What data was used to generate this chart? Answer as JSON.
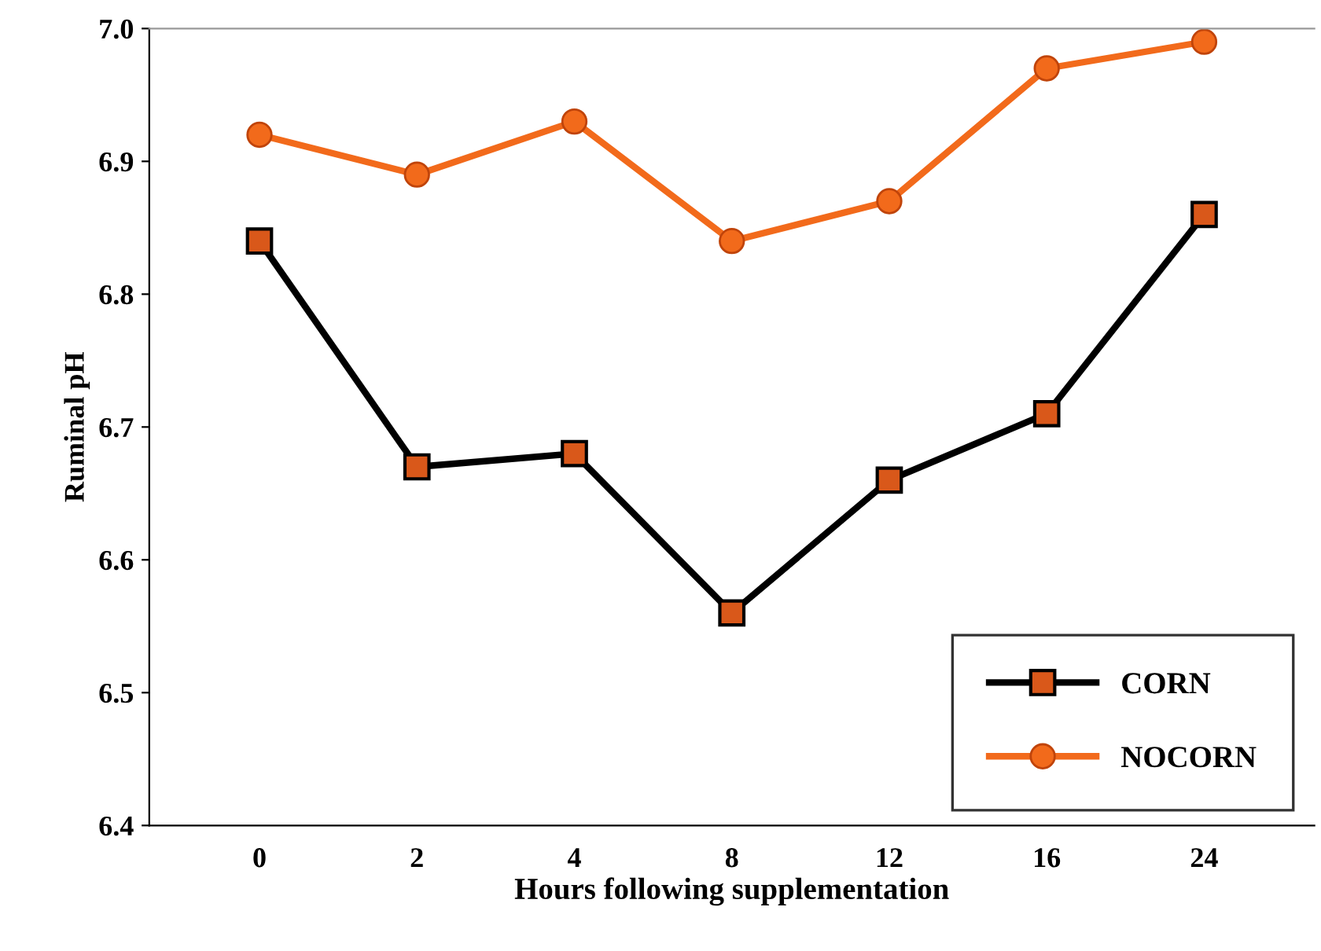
{
  "chart_data": {
    "type": "line",
    "xlabel": "Hours following supplementation",
    "ylabel": "Ruminal pH",
    "categories": [
      "0",
      "2",
      "4",
      "8",
      "12",
      "16",
      "24"
    ],
    "series": [
      {
        "name": "CORN",
        "color": "#000000",
        "marker": "square",
        "values": [
          6.84,
          6.67,
          6.68,
          6.56,
          6.66,
          6.71,
          6.86
        ]
      },
      {
        "name": "NOCORN",
        "color": "#f26a1b",
        "marker": "circle",
        "values": [
          6.92,
          6.89,
          6.93,
          6.84,
          6.87,
          6.97,
          6.99
        ]
      }
    ],
    "ylim": [
      6.4,
      7.0
    ],
    "yticks": [
      6.4,
      6.5,
      6.6,
      6.7,
      6.8,
      6.9,
      {
        "value": 7,
        "label": "7.0"
      }
    ],
    "grid": false,
    "legend": "bottom right",
    "line_style": "solid"
  }
}
